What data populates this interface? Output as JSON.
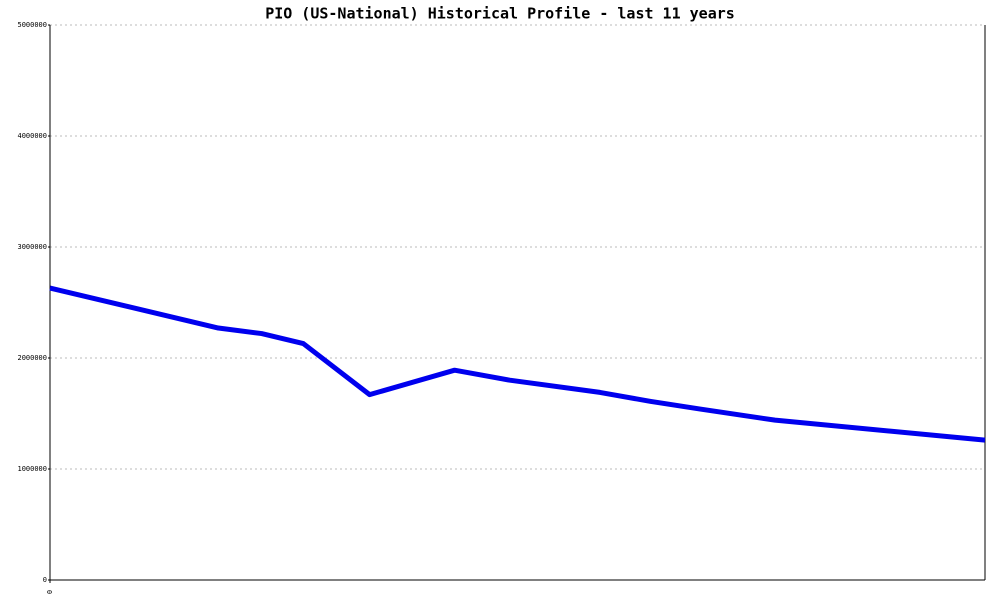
{
  "chart_data": {
    "type": "line",
    "title": "PIO (US-National) Historical Profile - last 11 years",
    "x": [
      0,
      1.98,
      2.49,
      2.98,
      3.76,
      4.76,
      5.41,
      6.47,
      7.06,
      7.65,
      8.53,
      11
    ],
    "series": [
      {
        "color": "#0000ee",
        "values": [
          2630000,
          2270000,
          2220000,
          2130000,
          1670000,
          1890000,
          1800000,
          1690000,
          1610000,
          1540000,
          1440000,
          1260000
        ]
      }
    ],
    "xlim": [
      0,
      11
    ],
    "xticks": [
      0
    ],
    "ylim": [
      0,
      5000000
    ],
    "yticks": [
      0,
      1000000,
      2000000,
      3000000,
      4000000,
      5000000
    ],
    "grid": true
  }
}
